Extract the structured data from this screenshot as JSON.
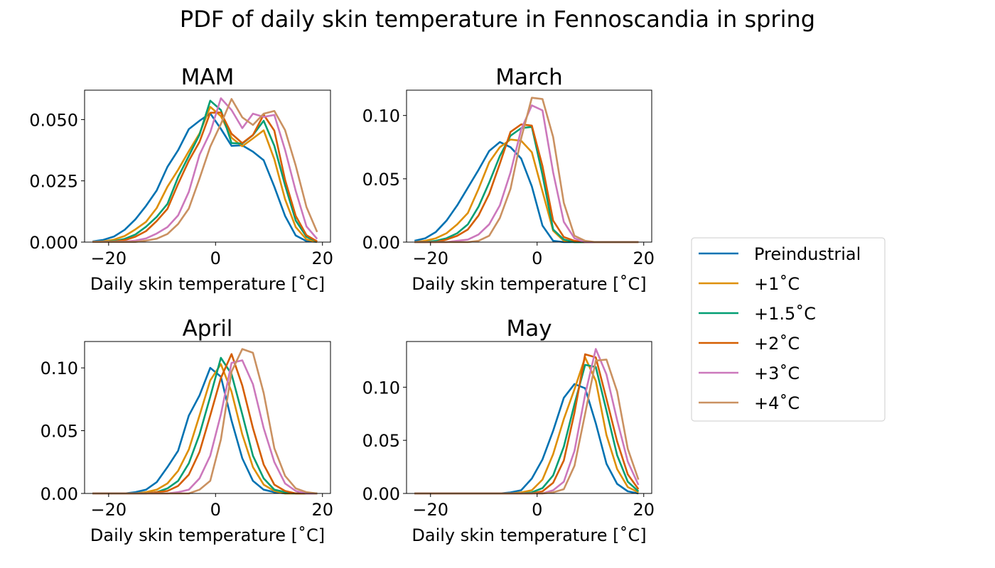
{
  "title": "PDF of daily skin temperature in Fennoscandia in spring",
  "colors": {
    "Preindustrial": "#0072b2",
    "+1˚C": "#de8f05",
    "+1.5˚C": "#029e73",
    "+2˚C": "#d55e00",
    "+3˚C": "#cc78bc",
    "+4˚C": "#ca9161"
  },
  "legend": {
    "placement": "right",
    "entries": [
      "Preindustrial",
      "+1˚C",
      "+1.5˚C",
      "+2˚C",
      "+3˚C",
      "+4˚C"
    ]
  },
  "chart_data": [
    {
      "type": "line",
      "title": "MAM",
      "xlabel": "Daily skin temperature [˚C]",
      "ylabel": "",
      "xlim": [
        -24.5,
        21.5
      ],
      "ylim": [
        0,
        0.062
      ],
      "xticks": [
        -20,
        0,
        20
      ],
      "yticks": [
        0.0,
        0.025,
        0.05
      ],
      "ytick_labels": [
        "0.000",
        "0.025",
        "0.050"
      ],
      "x": [
        -23,
        -21,
        -19,
        -17,
        -15,
        -13,
        -11,
        -9,
        -7,
        -5,
        -3,
        -1,
        1,
        3,
        5,
        7,
        9,
        11,
        13,
        15,
        17,
        19
      ],
      "series": [
        {
          "name": "Preindustrial",
          "values": [
            0.0003,
            0.0009,
            0.0023,
            0.005,
            0.0093,
            0.0148,
            0.0211,
            0.0307,
            0.0375,
            0.0461,
            0.0495,
            0.0525,
            0.0462,
            0.0393,
            0.0395,
            0.0369,
            0.0334,
            0.0226,
            0.0107,
            0.0027,
            0.0004,
            0.0001
          ]
        },
        {
          "name": "+1˚C",
          "values": [
            0.0001,
            0.0003,
            0.001,
            0.0025,
            0.0052,
            0.0083,
            0.0139,
            0.0226,
            0.0295,
            0.0371,
            0.0443,
            0.0552,
            0.0514,
            0.0426,
            0.0391,
            0.0423,
            0.0456,
            0.0338,
            0.0175,
            0.0061,
            0.0011,
            0.0001
          ]
        },
        {
          "name": "+1.5˚C",
          "values": [
            0.0001,
            0.0001,
            0.0004,
            0.0013,
            0.0031,
            0.0063,
            0.0103,
            0.0156,
            0.0265,
            0.0352,
            0.0438,
            0.0577,
            0.0539,
            0.0404,
            0.0402,
            0.0437,
            0.0495,
            0.0393,
            0.0232,
            0.0088,
            0.0022,
            0.0002
          ]
        },
        {
          "name": "+2˚C",
          "values": [
            0.0001,
            0.0001,
            0.0002,
            0.0008,
            0.0022,
            0.0045,
            0.0086,
            0.0136,
            0.0238,
            0.0332,
            0.0409,
            0.0528,
            0.0529,
            0.0442,
            0.0404,
            0.0437,
            0.052,
            0.0455,
            0.0254,
            0.0107,
            0.0028,
            0.0003
          ]
        },
        {
          "name": "+3˚C",
          "values": [
            0.0001,
            0.0001,
            0.0001,
            0.0002,
            0.0006,
            0.0015,
            0.0035,
            0.0061,
            0.0109,
            0.0205,
            0.0356,
            0.0448,
            0.0587,
            0.0539,
            0.0465,
            0.0524,
            0.0511,
            0.0519,
            0.0376,
            0.0209,
            0.0064,
            0.0013
          ]
        },
        {
          "name": "+4˚C",
          "values": [
            0.0001,
            0.0001,
            0.0001,
            0.0001,
            0.0001,
            0.0006,
            0.0014,
            0.0033,
            0.0074,
            0.0137,
            0.0259,
            0.0389,
            0.0482,
            0.0584,
            0.0509,
            0.0478,
            0.0524,
            0.0535,
            0.0457,
            0.0312,
            0.0143,
            0.0041
          ]
        }
      ]
    },
    {
      "type": "line",
      "title": "March",
      "xlabel": "Daily skin temperature [˚C]",
      "ylabel": "",
      "xlim": [
        -24.5,
        21.5
      ],
      "ylim": [
        0,
        0.12
      ],
      "xticks": [
        -20,
        0,
        20
      ],
      "yticks": [
        0.0,
        0.05,
        0.1
      ],
      "ytick_labels": [
        "0.00",
        "0.05",
        "0.10"
      ],
      "x": [
        -23,
        -21,
        -19,
        -17,
        -15,
        -13,
        -11,
        -9,
        -7,
        -5,
        -3,
        -1,
        1,
        3,
        5,
        7,
        9,
        11,
        13,
        15,
        17,
        19
      ],
      "series": [
        {
          "name": "Preindustrial",
          "values": [
            0.001,
            0.003,
            0.008,
            0.017,
            0.029,
            0.043,
            0.057,
            0.072,
            0.079,
            0.075,
            0.066,
            0.044,
            0.013,
            0.001,
            0.0,
            0.0,
            0.0,
            0.0,
            0.0,
            0.0,
            0.0,
            0.0
          ]
        },
        {
          "name": "+1˚C",
          "values": [
            0.0,
            0.001,
            0.003,
            0.007,
            0.014,
            0.023,
            0.042,
            0.063,
            0.075,
            0.081,
            0.08,
            0.071,
            0.04,
            0.009,
            0.001,
            0.0,
            0.0,
            0.0,
            0.0,
            0.0,
            0.0,
            0.0
          ]
        },
        {
          "name": "+1.5˚C",
          "values": [
            0.0,
            0.0,
            0.001,
            0.003,
            0.007,
            0.014,
            0.028,
            0.047,
            0.068,
            0.084,
            0.09,
            0.091,
            0.053,
            0.01,
            0.002,
            0.0,
            0.0,
            0.0,
            0.0,
            0.0,
            0.0,
            0.0
          ]
        },
        {
          "name": "+2˚C",
          "values": [
            0.0,
            0.0,
            0.0,
            0.002,
            0.005,
            0.01,
            0.021,
            0.038,
            0.062,
            0.087,
            0.093,
            0.092,
            0.06,
            0.017,
            0.004,
            0.001,
            0.0,
            0.0,
            0.0,
            0.0,
            0.0,
            0.0
          ]
        },
        {
          "name": "+3˚C",
          "values": [
            0.0,
            0.0,
            0.0,
            0.0,
            0.001,
            0.002,
            0.006,
            0.014,
            0.029,
            0.055,
            0.089,
            0.108,
            0.104,
            0.055,
            0.016,
            0.003,
            0.0,
            0.0,
            0.0,
            0.0,
            0.0,
            0.0
          ]
        },
        {
          "name": "+4˚C",
          "values": [
            0.0,
            0.0,
            0.0,
            0.0,
            0.0,
            0.0,
            0.001,
            0.005,
            0.019,
            0.042,
            0.082,
            0.114,
            0.113,
            0.083,
            0.031,
            0.005,
            0.001,
            0.0,
            0.0,
            0.0,
            0.0,
            0.0
          ]
        }
      ]
    },
    {
      "type": "line",
      "title": "April",
      "xlabel": "Daily skin temperature [˚C]",
      "ylabel": "",
      "xlim": [
        -24.5,
        21.5
      ],
      "ylim": [
        0,
        0.121
      ],
      "xticks": [
        -20,
        0,
        20
      ],
      "yticks": [
        0.0,
        0.05,
        0.1
      ],
      "ytick_labels": [
        "0.00",
        "0.05",
        "0.10"
      ],
      "x": [
        -23,
        -21,
        -19,
        -17,
        -15,
        -13,
        -11,
        -9,
        -7,
        -5,
        -3,
        -1,
        1,
        3,
        5,
        7,
        9,
        11,
        13,
        15,
        17,
        19
      ],
      "series": [
        {
          "name": "Preindustrial",
          "values": [
            0.0,
            0.0,
            0.0,
            0.0,
            0.001,
            0.003,
            0.009,
            0.021,
            0.034,
            0.062,
            0.078,
            0.1,
            0.093,
            0.058,
            0.028,
            0.01,
            0.003,
            0.001,
            0.0,
            0.0,
            0.0,
            0.0
          ]
        },
        {
          "name": "+1˚C",
          "values": [
            0.0,
            0.0,
            0.0,
            0.0,
            0.0,
            0.001,
            0.003,
            0.008,
            0.018,
            0.035,
            0.062,
            0.09,
            0.103,
            0.081,
            0.047,
            0.021,
            0.007,
            0.002,
            0.0,
            0.0,
            0.0,
            0.0
          ]
        },
        {
          "name": "+1.5˚C",
          "values": [
            0.0,
            0.0,
            0.0,
            0.0,
            0.0,
            0.0,
            0.001,
            0.004,
            0.01,
            0.024,
            0.047,
            0.077,
            0.108,
            0.095,
            0.063,
            0.03,
            0.012,
            0.003,
            0.001,
            0.0,
            0.0,
            0.0
          ]
        },
        {
          "name": "+2˚C",
          "values": [
            0.0,
            0.0,
            0.0,
            0.0,
            0.0,
            0.0,
            0.001,
            0.002,
            0.006,
            0.015,
            0.033,
            0.062,
            0.092,
            0.111,
            0.086,
            0.052,
            0.023,
            0.007,
            0.002,
            0.0,
            0.0,
            0.0
          ]
        },
        {
          "name": "+3˚C",
          "values": [
            0.0,
            0.0,
            0.0,
            0.0,
            0.0,
            0.0,
            0.0,
            0.0,
            0.001,
            0.003,
            0.012,
            0.03,
            0.063,
            0.104,
            0.106,
            0.087,
            0.052,
            0.025,
            0.008,
            0.002,
            0.0,
            0.0
          ]
        },
        {
          "name": "+4˚C",
          "values": [
            0.0,
            0.0,
            0.0,
            0.0,
            0.0,
            0.0,
            0.0,
            0.0,
            0.0,
            0.0,
            0.003,
            0.01,
            0.043,
            0.097,
            0.115,
            0.112,
            0.08,
            0.036,
            0.014,
            0.004,
            0.001,
            0.0
          ]
        }
      ]
    },
    {
      "type": "line",
      "title": "May",
      "xlabel": "Daily skin temperature [˚C]",
      "ylabel": "",
      "xlim": [
        -24.5,
        21.5
      ],
      "ylim": [
        0,
        0.143
      ],
      "xticks": [
        -20,
        0,
        20
      ],
      "yticks": [
        0.0,
        0.05,
        0.1
      ],
      "ytick_labels": [
        "0.00",
        "0.05",
        "0.10"
      ],
      "x": [
        -23,
        -21,
        -19,
        -17,
        -15,
        -13,
        -11,
        -9,
        -7,
        -5,
        -3,
        -1,
        1,
        3,
        5,
        7,
        9,
        11,
        13,
        15,
        17,
        19
      ],
      "series": [
        {
          "name": "Preindustrial",
          "values": [
            0.0,
            0.0,
            0.0,
            0.0,
            0.0,
            0.0,
            0.0,
            0.0,
            0.0,
            0.001,
            0.003,
            0.014,
            0.032,
            0.059,
            0.09,
            0.103,
            0.099,
            0.066,
            0.028,
            0.009,
            0.002,
            0.0
          ]
        },
        {
          "name": "+1˚C",
          "values": [
            0.0,
            0.0,
            0.0,
            0.0,
            0.0,
            0.0,
            0.0,
            0.0,
            0.0,
            0.0,
            0.001,
            0.003,
            0.013,
            0.037,
            0.07,
            0.098,
            0.128,
            0.106,
            0.055,
            0.023,
            0.006,
            0.001
          ]
        },
        {
          "name": "+1.5˚C",
          "values": [
            0.0,
            0.0,
            0.0,
            0.0,
            0.0,
            0.0,
            0.0,
            0.0,
            0.0,
            0.0,
            0.0,
            0.001,
            0.005,
            0.017,
            0.044,
            0.084,
            0.121,
            0.119,
            0.078,
            0.036,
            0.011,
            0.002
          ]
        },
        {
          "name": "+2˚C",
          "values": [
            0.0,
            0.0,
            0.0,
            0.0,
            0.0,
            0.0,
            0.0,
            0.0,
            0.0,
            0.0,
            0.0,
            0.0,
            0.002,
            0.01,
            0.031,
            0.076,
            0.131,
            0.128,
            0.089,
            0.049,
            0.018,
            0.004
          ]
        },
        {
          "name": "+3˚C",
          "values": [
            0.0,
            0.0,
            0.0,
            0.0,
            0.0,
            0.0,
            0.0,
            0.0,
            0.0,
            0.0,
            0.0,
            0.0,
            0.0,
            0.003,
            0.011,
            0.04,
            0.093,
            0.136,
            0.112,
            0.069,
            0.03,
            0.008
          ]
        },
        {
          "name": "+4˚C",
          "values": [
            0.0,
            0.0,
            0.0,
            0.0,
            0.0,
            0.0,
            0.0,
            0.0,
            0.0,
            0.0,
            0.0,
            0.0,
            0.0,
            0.001,
            0.004,
            0.026,
            0.075,
            0.125,
            0.126,
            0.096,
            0.042,
            0.013
          ]
        }
      ]
    }
  ]
}
